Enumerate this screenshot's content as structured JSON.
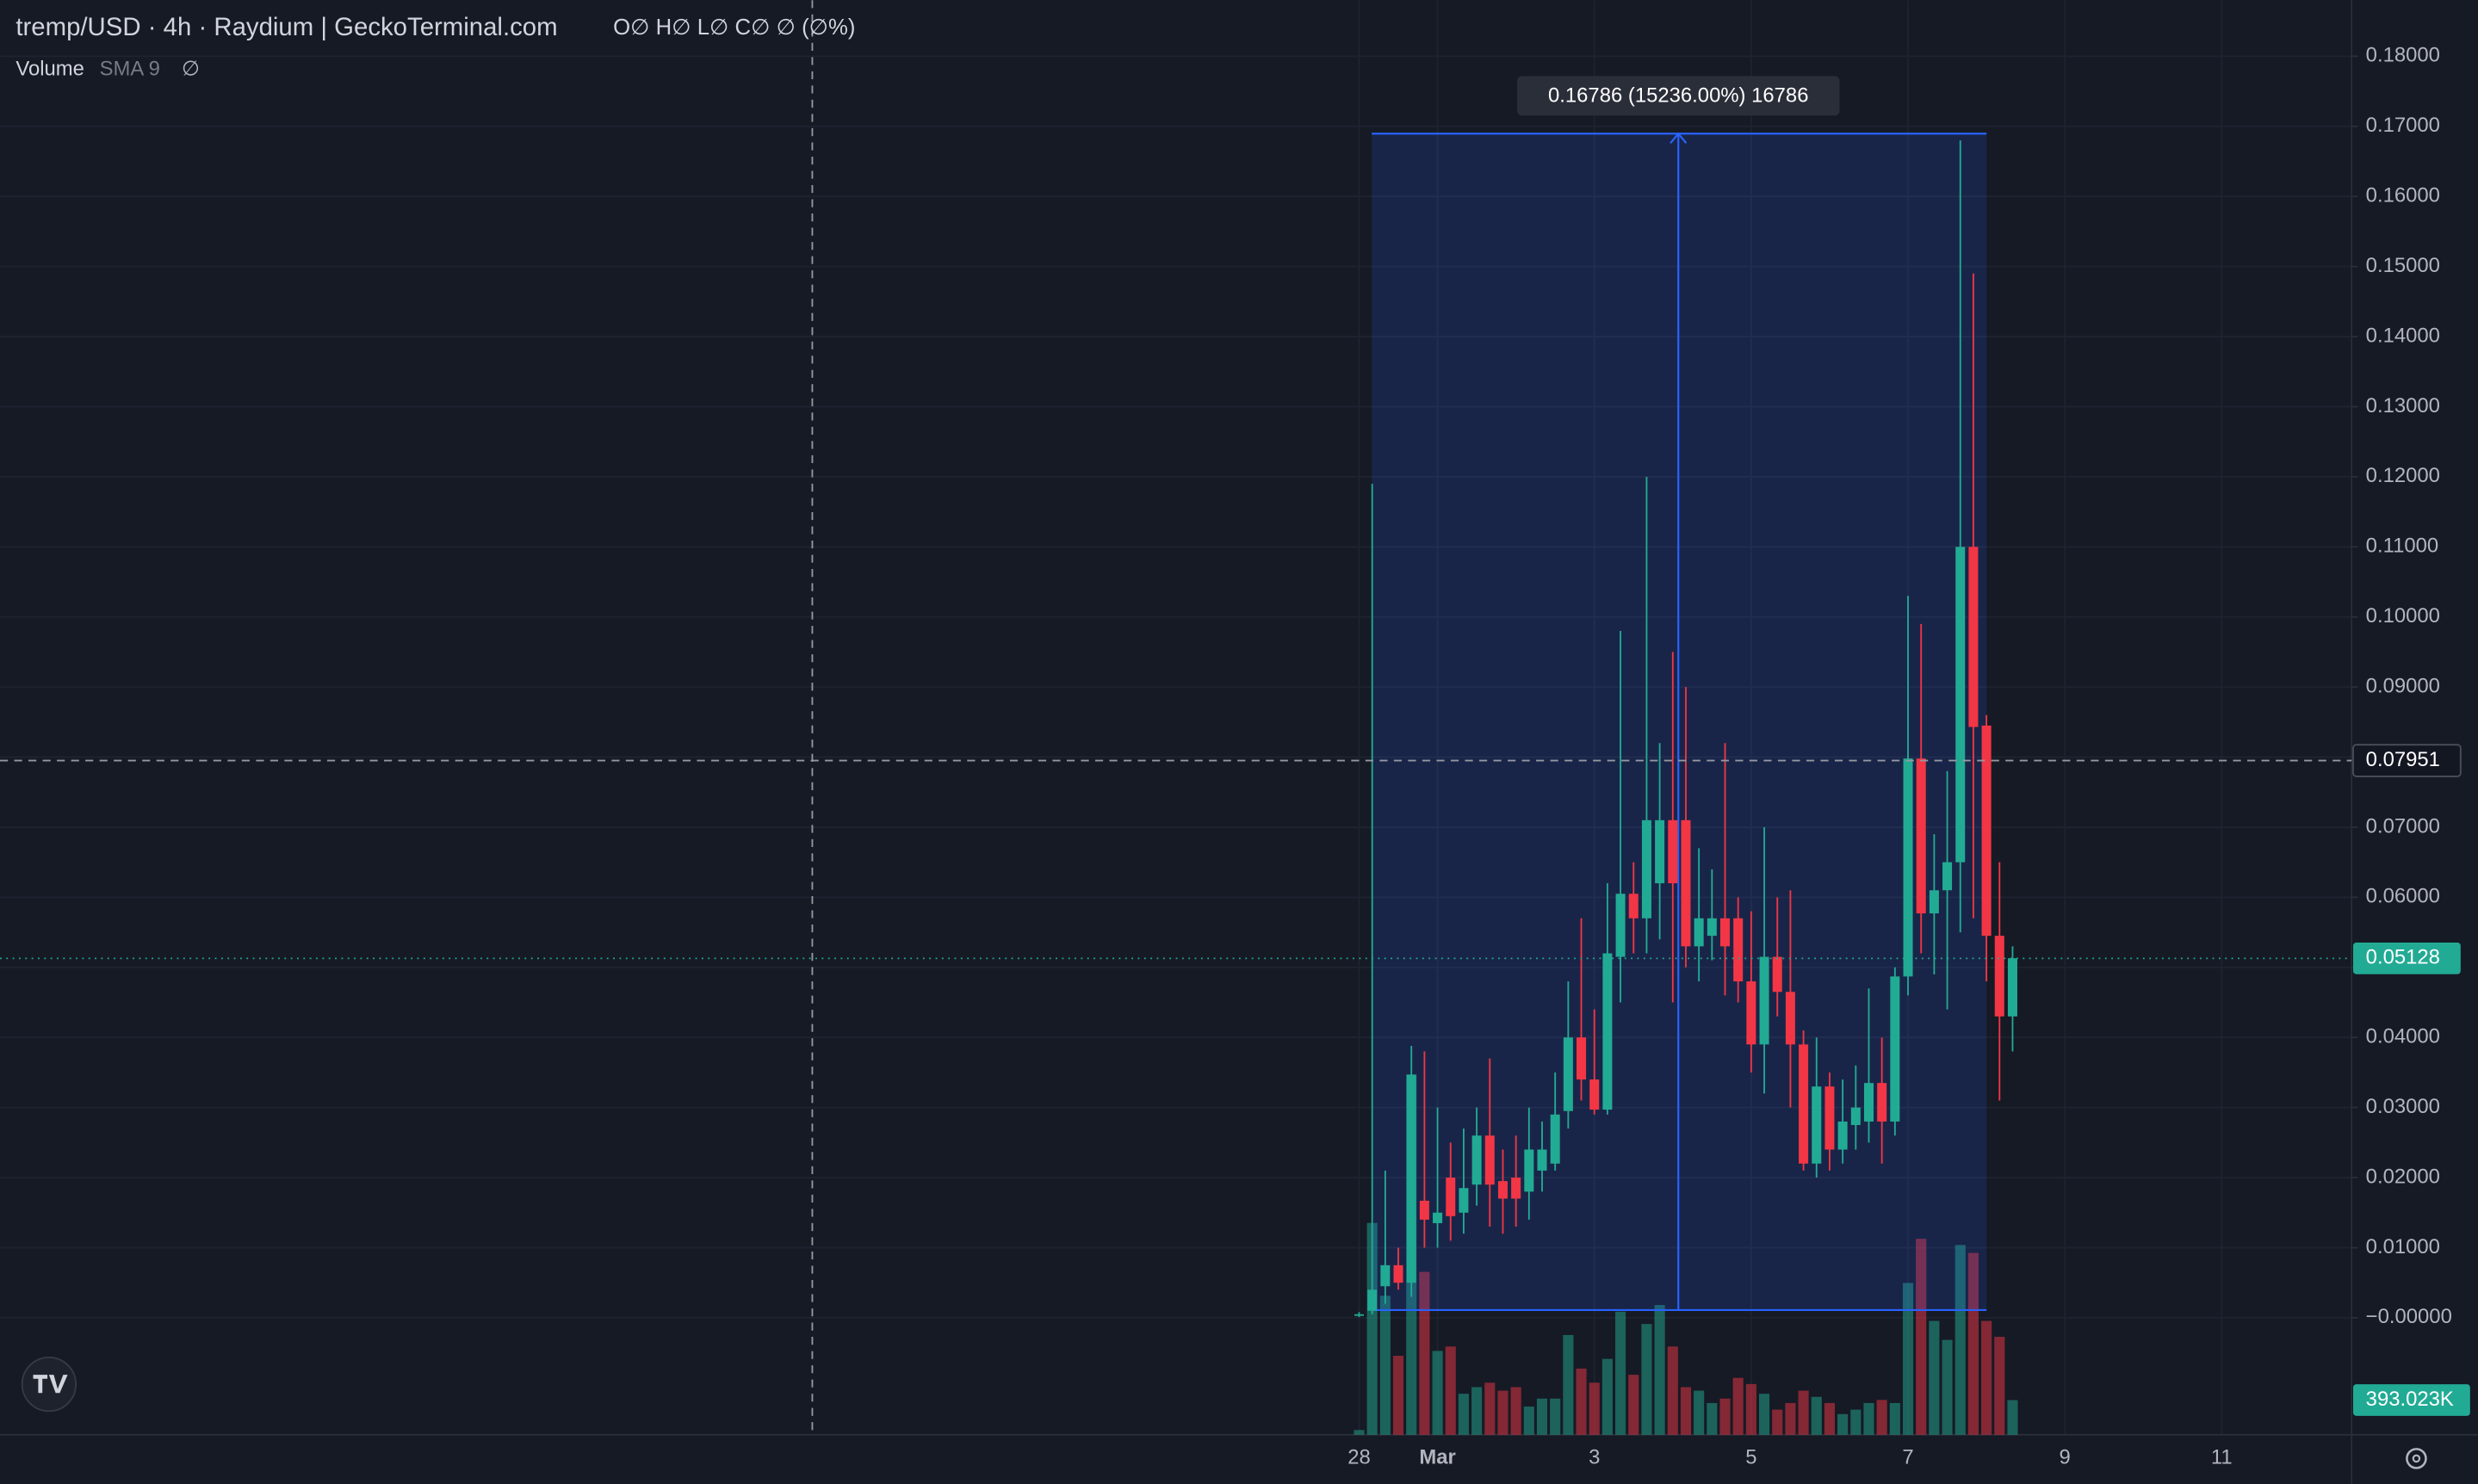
{
  "chart_data": {
    "type": "candlestick",
    "title": "tremp/USD · 4h · Raydium | GeckoTerminal.com",
    "legend_text": "O∅ H∅ L∅ C∅ ∅ (∅%)",
    "indicator": {
      "name": "Volume",
      "params": "SMA 9",
      "value": "∅"
    },
    "categories": [
      "28",
      null,
      null,
      null,
      null,
      null,
      "Mar",
      null,
      null,
      null,
      null,
      null,
      null,
      null,
      null,
      null,
      null,
      null,
      "3",
      null,
      null,
      null,
      null,
      null,
      null,
      null,
      null,
      null,
      null,
      null,
      "5",
      null,
      null,
      null,
      null,
      null,
      null,
      null,
      null,
      null,
      null,
      null,
      "7",
      null,
      null,
      null,
      null,
      null,
      null,
      null,
      null,
      null,
      null,
      null,
      "9",
      null,
      null,
      null,
      null,
      null,
      null,
      null,
      null,
      null,
      null,
      null,
      "11",
      null,
      null,
      null,
      null,
      null,
      null,
      null,
      null
    ],
    "open": [
      0.0003,
      0.001,
      0.0045,
      0.0075,
      0.005,
      0.0167,
      0.0135,
      0.02,
      0.015,
      0.019,
      0.026,
      0.0195,
      0.02,
      0.018,
      0.021,
      0.022,
      0.0295,
      0.04,
      0.034,
      0.0297,
      0.0515,
      0.0605,
      0.057,
      0.062,
      0.071,
      0.071,
      0.053,
      0.0545,
      0.057,
      0.057,
      0.048,
      0.039,
      0.0515,
      0.0465,
      0.039,
      0.022,
      0.033,
      0.024,
      0.0275,
      0.028,
      0.0335,
      0.028,
      0.0487,
      0.0798,
      0.0577,
      0.061,
      0.065,
      0.11,
      0.0845,
      0.0545,
      0.043,
      null,
      null,
      null,
      null,
      null,
      null,
      null,
      null,
      null,
      null,
      null,
      null,
      null,
      null,
      null,
      null,
      null,
      null,
      null,
      null,
      null,
      null,
      null,
      null
    ],
    "high": [
      0.0008,
      0.119,
      0.021,
      0.01,
      0.0388,
      0.038,
      0.03,
      0.025,
      0.027,
      0.03,
      0.037,
      0.024,
      0.026,
      0.03,
      0.028,
      0.035,
      0.048,
      0.057,
      0.044,
      0.062,
      0.098,
      0.065,
      0.12,
      0.082,
      0.095,
      0.09,
      0.067,
      0.064,
      0.082,
      0.06,
      0.058,
      0.07,
      0.06,
      0.061,
      0.041,
      0.04,
      0.035,
      0.034,
      0.036,
      0.047,
      0.04,
      0.05,
      0.103,
      0.099,
      0.069,
      0.078,
      0.168,
      0.149,
      0.086,
      0.065,
      0.053,
      null,
      null,
      null,
      null,
      null,
      null,
      null,
      null,
      null,
      null,
      null,
      null,
      null,
      null,
      null,
      null,
      null,
      null,
      null,
      null,
      null,
      null,
      null,
      null
    ],
    "low": [
      0.0001,
      0.0005,
      0.002,
      0.004,
      0.003,
      0.01,
      0.01,
      0.011,
      0.012,
      0.016,
      0.013,
      0.012,
      0.013,
      0.014,
      0.018,
      0.021,
      0.027,
      0.031,
      0.029,
      0.029,
      0.045,
      0.052,
      0.052,
      0.054,
      0.045,
      0.05,
      0.048,
      0.051,
      0.046,
      0.045,
      0.035,
      0.032,
      0.043,
      0.03,
      0.021,
      0.02,
      0.021,
      0.022,
      0.024,
      0.025,
      0.022,
      0.026,
      0.046,
      0.052,
      0.049,
      0.044,
      0.055,
      0.057,
      0.048,
      0.031,
      0.038,
      null,
      null,
      null,
      null,
      null,
      null,
      null,
      null,
      null,
      null,
      null,
      null,
      null,
      null,
      null,
      null,
      null,
      null,
      null,
      null,
      null,
      null,
      null,
      null
    ],
    "close": [
      0.0005,
      0.004,
      0.0075,
      0.005,
      0.0347,
      0.014,
      0.015,
      0.0145,
      0.0185,
      0.026,
      0.019,
      0.017,
      0.017,
      0.024,
      0.024,
      0.029,
      0.04,
      0.034,
      0.0297,
      0.052,
      0.0605,
      0.057,
      0.071,
      0.071,
      0.062,
      0.053,
      0.057,
      0.057,
      0.053,
      0.048,
      0.039,
      0.0515,
      0.0465,
      0.039,
      0.022,
      0.033,
      0.024,
      0.028,
      0.03,
      0.0335,
      0.028,
      0.0487,
      0.0798,
      0.0577,
      0.061,
      0.065,
      0.11,
      0.0843,
      0.0545,
      0.043,
      0.0513,
      null,
      null,
      null,
      null,
      null,
      null,
      null,
      null,
      null,
      null,
      null,
      null,
      null,
      null,
      null,
      null,
      null,
      null,
      null,
      null,
      null,
      null,
      null,
      null
    ],
    "volume": {
      "values": [
        54,
        2400,
        1575,
        895,
        4080,
        1845,
        950,
        1000,
        465,
        540,
        590,
        500,
        540,
        320,
        410,
        410,
        1130,
        750,
        590,
        860,
        1395,
        680,
        1255,
        1470,
        1000,
        540,
        500,
        360,
        410,
        645,
        575,
        465,
        285,
        360,
        500,
        430,
        360,
        235,
        285,
        360,
        395,
        360,
        1720,
        2220,
        1290,
        1075,
        2150,
        2060,
        1290,
        1110,
        393.023,
        null,
        null,
        null,
        null,
        null,
        null,
        null,
        null,
        null,
        null,
        null,
        null,
        null,
        null,
        null,
        null,
        null,
        null,
        null,
        null,
        null,
        null,
        null,
        null
      ],
      "value_labels": [
        null,
        null,
        null,
        null,
        null,
        null,
        null,
        null,
        null,
        null,
        null,
        null,
        null,
        null,
        null,
        null,
        null,
        null,
        null,
        null,
        null,
        null,
        null,
        null,
        null,
        null,
        null,
        null,
        null,
        null,
        null,
        null,
        null,
        null,
        null,
        null,
        null,
        null,
        null,
        null,
        null,
        null,
        null,
        null,
        null,
        null,
        null,
        null,
        null,
        null,
        "393.023K",
        null,
        null,
        null,
        null,
        null,
        null,
        null,
        null,
        null,
        null,
        null,
        null,
        null,
        null,
        null,
        null,
        null,
        null,
        null,
        null,
        null,
        null,
        null,
        null
      ]
    },
    "up_color": "#22ab94",
    "down_color": "#f23645",
    "ylim": [
      -0.0167,
      0.188
    ],
    "yticks": [
      {
        "value": 0.18,
        "label": "0.18000"
      },
      {
        "value": 0.17,
        "label": "0.17000"
      },
      {
        "value": 0.16,
        "label": "0.16000"
      },
      {
        "value": 0.15,
        "label": "0.15000"
      },
      {
        "value": 0.14,
        "label": "0.14000"
      },
      {
        "value": 0.13,
        "label": "0.13000"
      },
      {
        "value": 0.12,
        "label": "0.12000"
      },
      {
        "value": 0.11,
        "label": "0.11000"
      },
      {
        "value": 0.1,
        "label": "0.10000"
      },
      {
        "value": 0.09,
        "label": "0.09000"
      },
      {
        "value": 0.08,
        "label": "0.08000"
      },
      {
        "value": 0.07,
        "label": "0.07000"
      },
      {
        "value": 0.06,
        "label": "0.06000"
      },
      {
        "value": 0.05,
        "label": "0.05000"
      },
      {
        "value": 0.04,
        "label": "0.04000"
      },
      {
        "value": 0.03,
        "label": "0.03000"
      },
      {
        "value": 0.02,
        "label": "0.02000"
      },
      {
        "value": 0.01,
        "label": "0.01000"
      },
      {
        "value": 0,
        "label": "−0.00000"
      }
    ],
    "grid": true,
    "measure": {
      "low": 0.0011,
      "high": 0.16896,
      "label": "0.16786 (15236.00%) 16786"
    },
    "crosshair_price": 0.07951,
    "last_price": 0.05128
  }
}
